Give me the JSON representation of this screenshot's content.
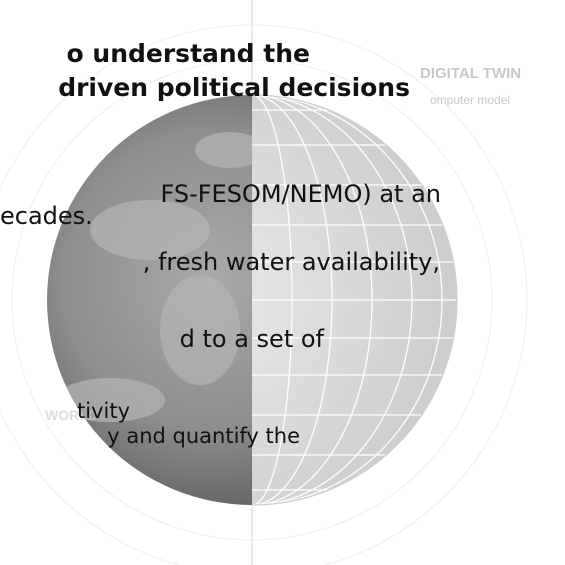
{
  "slide": {
    "title_lines": [
      "o understand the",
      "driven political decisions"
    ],
    "body_lines": [
      "FS-FESOM/NEMO) at an",
      "ecades.",
      ", fresh water availability,",
      "d to a set of"
    ],
    "sub_lines": [
      "tivity",
      "y and quantify the"
    ],
    "labels": {
      "right_title": "DIGITAL TWIN",
      "right_subtitle": "omputer model",
      "left_title": "WORLD"
    }
  }
}
